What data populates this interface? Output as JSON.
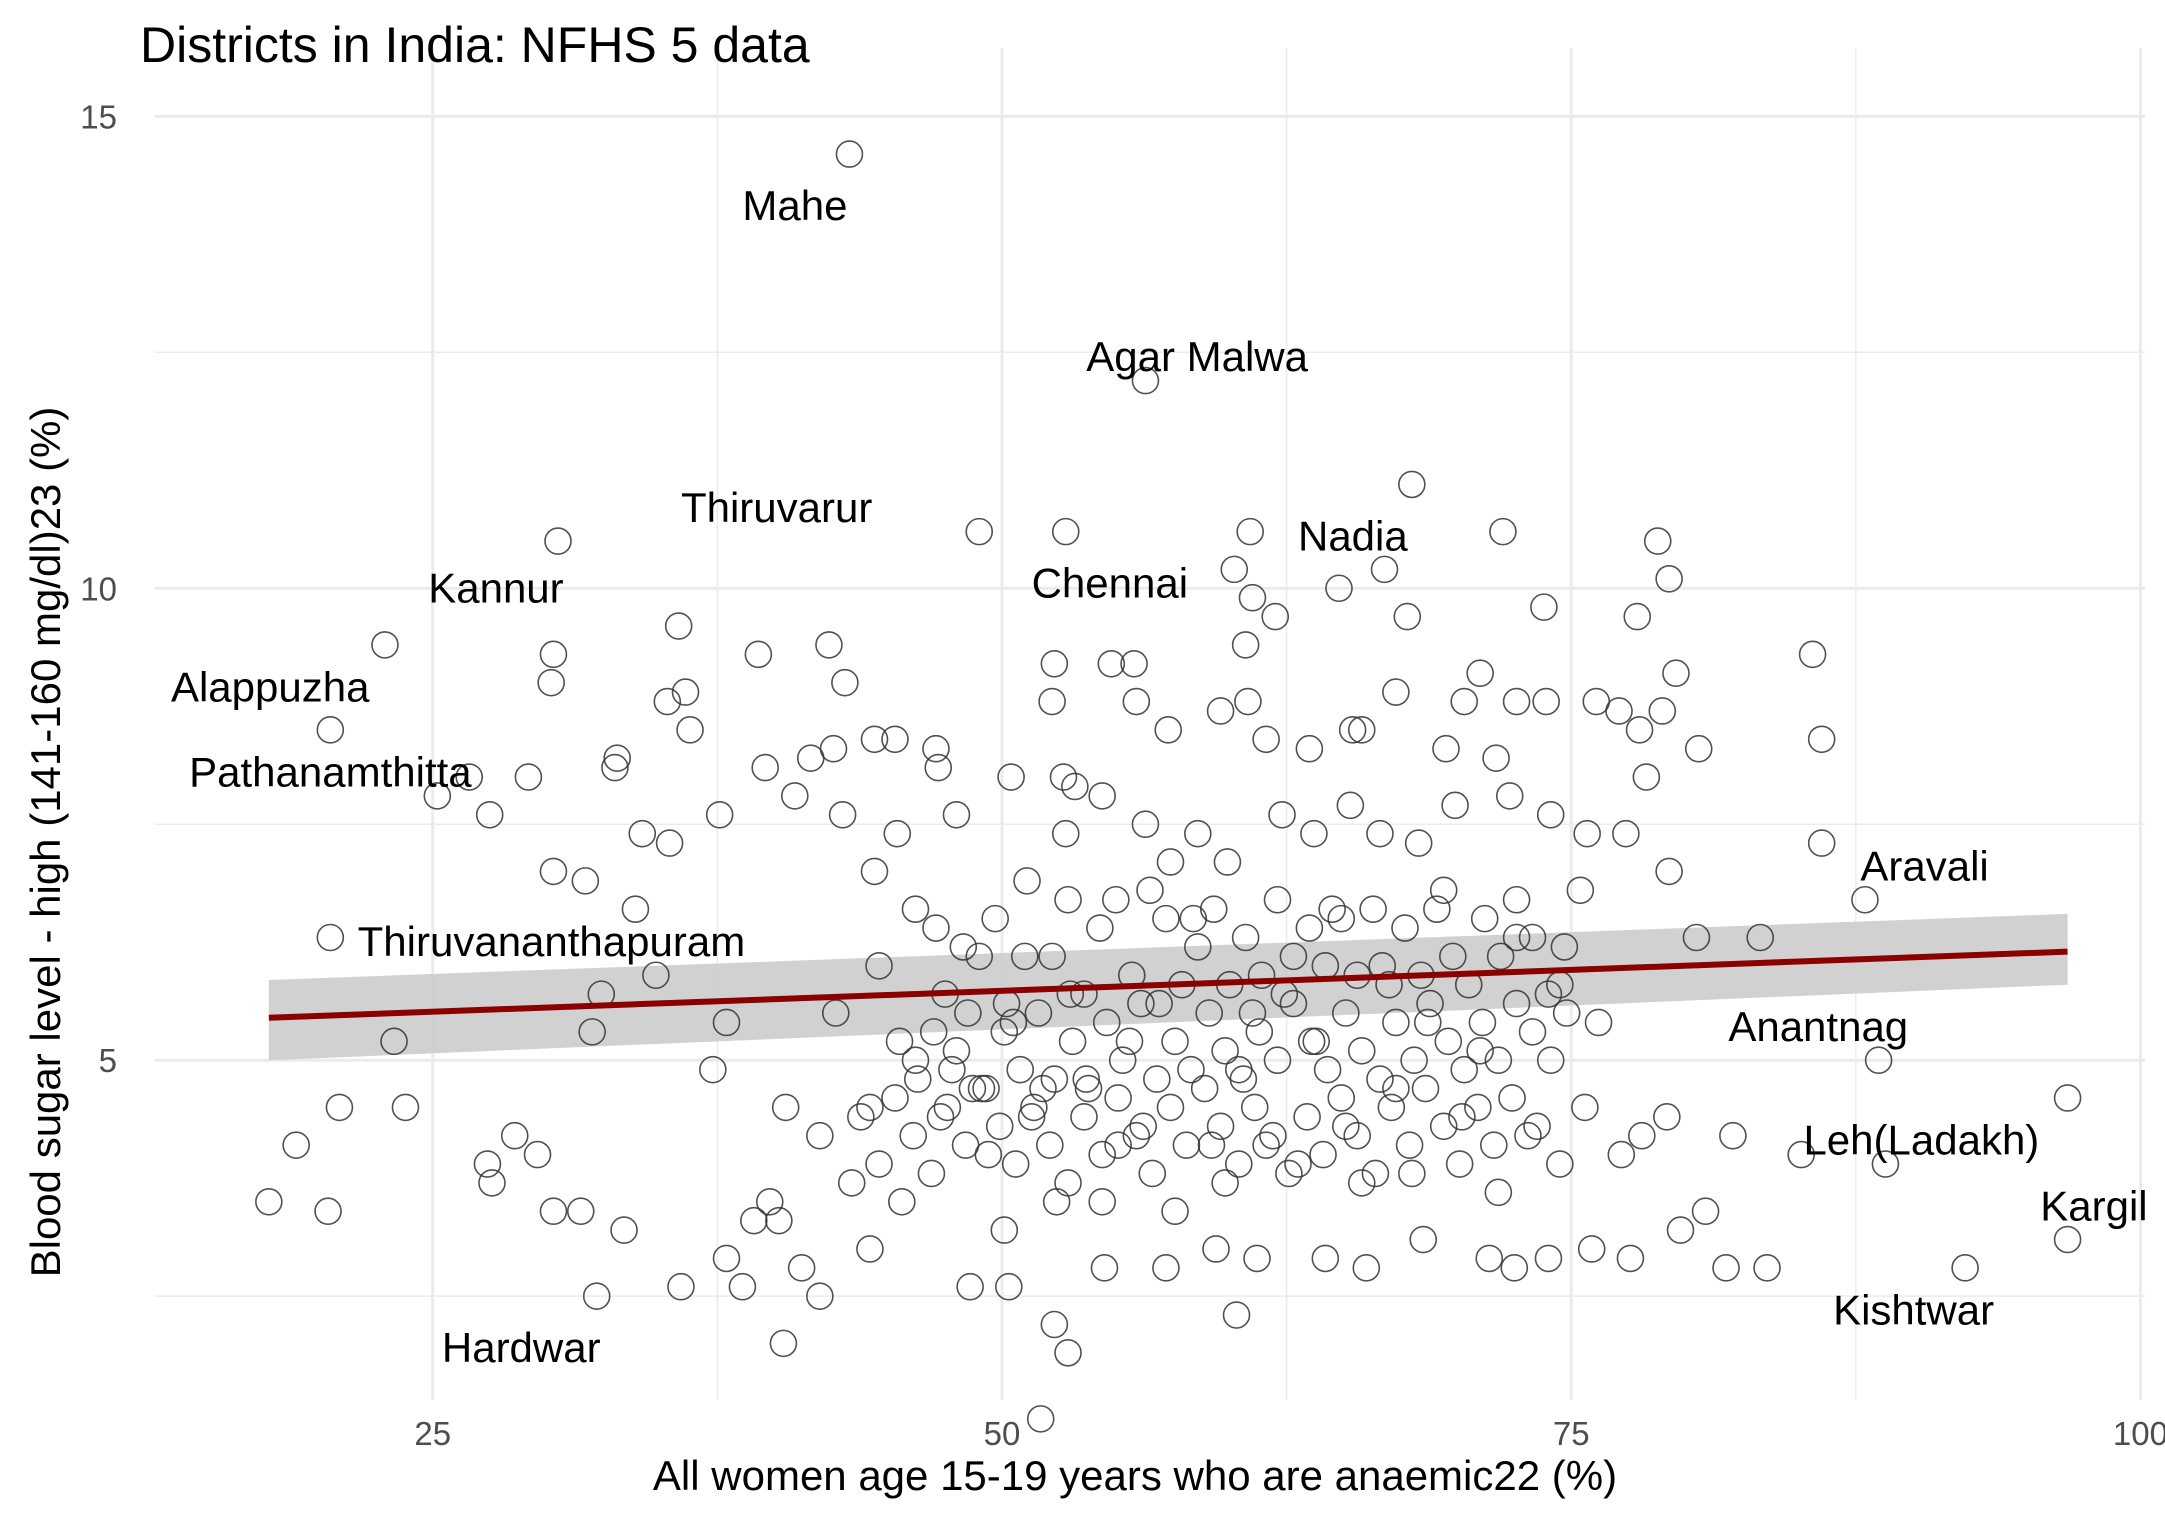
{
  "chart_data": {
    "type": "scatter",
    "title": "Districts in India: NFHS 5 data",
    "xlabel": "All women age 15-19 years who are anaemic22 (%)",
    "ylabel": "Blood sugar level - high (141-160 mg/dl)23 (%)",
    "xlim": [
      12.8,
      100.2
    ],
    "ylim": [
      1.4,
      15.3
    ],
    "x_ticks": [
      25,
      50,
      75,
      100
    ],
    "y_ticks": [
      5,
      10,
      15
    ],
    "grid": true,
    "legend": "none",
    "colors": {
      "points_stroke": "#333333",
      "trend_line": "#8b0000",
      "confidence_band": "#cccccc",
      "grid": "#ebebeb"
    },
    "trend_line": {
      "x": [
        17.8,
        96.8
      ],
      "y": [
        5.45,
        6.15
      ],
      "band_lower": [
        5.0,
        5.8
      ],
      "band_upper": [
        5.85,
        6.55
      ]
    },
    "labels": [
      {
        "text": "Mahe",
        "x": 38.6,
        "y": 14.05
      },
      {
        "text": "Agar Malwa",
        "x": 53.7,
        "y": 12.45
      },
      {
        "text": "Thiruvarur",
        "x": 35.9,
        "y": 10.85
      },
      {
        "text": "Nadia",
        "x": 63.0,
        "y": 10.55
      },
      {
        "text": "Chennai",
        "x": 51.3,
        "y": 10.05
      },
      {
        "text": "Kannur",
        "x": 24.8,
        "y": 10.0
      },
      {
        "text": "Alappuzha",
        "x": 13.5,
        "y": 8.95
      },
      {
        "text": "Pathanamthitta",
        "x": 14.3,
        "y": 8.05
      },
      {
        "text": "Thiruvananthapuram",
        "x": 21.7,
        "y": 6.25
      },
      {
        "text": "Aravali",
        "x": 87.7,
        "y": 7.05
      },
      {
        "text": "Anantnag",
        "x": 81.9,
        "y": 5.35
      },
      {
        "text": "Leh(Ladakh)",
        "x": 85.2,
        "y": 4.15
      },
      {
        "text": "Kargil",
        "x": 95.6,
        "y": 3.45
      },
      {
        "text": "Kishtwar",
        "x": 86.5,
        "y": 2.35
      },
      {
        "text": "Hardwar",
        "x": 25.4,
        "y": 1.95
      }
    ],
    "points": [
      [
        43.3,
        14.6
      ],
      [
        56.3,
        12.2
      ],
      [
        49.0,
        10.6
      ],
      [
        52.8,
        10.6
      ],
      [
        60.9,
        10.6
      ],
      [
        68.0,
        11.1
      ],
      [
        72.0,
        10.6
      ],
      [
        78.8,
        10.5
      ],
      [
        79.3,
        10.1
      ],
      [
        30.5,
        10.5
      ],
      [
        60.2,
        10.2
      ],
      [
        61.0,
        9.9
      ],
      [
        62.0,
        9.7
      ],
      [
        64.8,
        10.0
      ],
      [
        66.8,
        10.2
      ],
      [
        67.8,
        9.7
      ],
      [
        73.8,
        9.8
      ],
      [
        77.9,
        9.7
      ],
      [
        85.6,
        9.3
      ],
      [
        22.9,
        9.4
      ],
      [
        30.3,
        9.3
      ],
      [
        30.2,
        9.0
      ],
      [
        35.8,
        9.6
      ],
      [
        39.3,
        9.3
      ],
      [
        42.4,
        9.4
      ],
      [
        43.1,
        9.0
      ],
      [
        52.3,
        9.2
      ],
      [
        54.8,
        9.2
      ],
      [
        55.8,
        9.2
      ],
      [
        60.7,
        9.4
      ],
      [
        71.0,
        9.1
      ],
      [
        79.6,
        9.1
      ],
      [
        20.5,
        8.5
      ],
      [
        25.2,
        7.8
      ],
      [
        27.5,
        7.6
      ],
      [
        31.7,
        6.9
      ],
      [
        33.1,
        8.2
      ],
      [
        35.3,
        8.8
      ],
      [
        36.1,
        8.9
      ],
      [
        36.3,
        8.5
      ],
      [
        39.6,
        8.1
      ],
      [
        41.6,
        8.2
      ],
      [
        42.6,
        8.3
      ],
      [
        44.4,
        8.4
      ],
      [
        45.3,
        8.4
      ],
      [
        47.1,
        8.3
      ],
      [
        47.2,
        8.1
      ],
      [
        50.4,
        8.0
      ],
      [
        52.2,
        8.8
      ],
      [
        52.7,
        8.0
      ],
      [
        55.9,
        8.8
      ],
      [
        57.3,
        8.5
      ],
      [
        59.6,
        8.7
      ],
      [
        60.8,
        8.8
      ],
      [
        61.6,
        8.4
      ],
      [
        63.5,
        8.3
      ],
      [
        65.4,
        8.5
      ],
      [
        65.8,
        8.5
      ],
      [
        67.3,
        8.9
      ],
      [
        69.5,
        8.3
      ],
      [
        70.3,
        8.8
      ],
      [
        71.7,
        8.2
      ],
      [
        72.6,
        8.8
      ],
      [
        73.9,
        8.8
      ],
      [
        76.1,
        8.8
      ],
      [
        77.1,
        8.7
      ],
      [
        78.0,
        8.5
      ],
      [
        79.0,
        8.7
      ],
      [
        80.6,
        8.3
      ],
      [
        86.0,
        8.4
      ],
      [
        26.6,
        8.0
      ],
      [
        29.2,
        8.0
      ],
      [
        30.3,
        7.0
      ],
      [
        33.0,
        8.1
      ],
      [
        34.2,
        7.4
      ],
      [
        35.4,
        7.3
      ],
      [
        37.6,
        7.6
      ],
      [
        40.9,
        7.8
      ],
      [
        43.0,
        7.6
      ],
      [
        44.4,
        7.0
      ],
      [
        45.4,
        7.4
      ],
      [
        47.1,
        6.4
      ],
      [
        48.0,
        7.6
      ],
      [
        49.7,
        6.5
      ],
      [
        51.1,
        6.9
      ],
      [
        52.8,
        7.4
      ],
      [
        53.2,
        7.9
      ],
      [
        54.4,
        7.8
      ],
      [
        56.3,
        7.5
      ],
      [
        57.4,
        7.1
      ],
      [
        58.6,
        7.4
      ],
      [
        59.9,
        7.1
      ],
      [
        62.3,
        7.6
      ],
      [
        63.7,
        7.4
      ],
      [
        65.3,
        7.7
      ],
      [
        66.6,
        7.4
      ],
      [
        68.3,
        7.3
      ],
      [
        69.9,
        7.7
      ],
      [
        72.3,
        7.8
      ],
      [
        74.1,
        7.6
      ],
      [
        75.7,
        7.4
      ],
      [
        77.4,
        7.4
      ],
      [
        78.3,
        8.0
      ],
      [
        79.3,
        7.0
      ],
      [
        86.0,
        7.3
      ],
      [
        87.9,
        6.7
      ],
      [
        17.8,
        3.5
      ],
      [
        19.0,
        4.1
      ],
      [
        20.4,
        3.4
      ],
      [
        20.5,
        6.3
      ],
      [
        20.9,
        4.5
      ],
      [
        23.3,
        5.2
      ],
      [
        23.8,
        4.5
      ],
      [
        27.4,
        3.9
      ],
      [
        27.6,
        3.7
      ],
      [
        28.6,
        4.2
      ],
      [
        29.6,
        4.0
      ],
      [
        30.3,
        3.4
      ],
      [
        32.0,
        5.3
      ],
      [
        32.4,
        5.7
      ],
      [
        33.4,
        3.2
      ],
      [
        33.9,
        6.6
      ],
      [
        34.8,
        5.9
      ],
      [
        37.3,
        4.9
      ],
      [
        37.9,
        5.4
      ],
      [
        38.6,
        2.6
      ],
      [
        39.8,
        3.5
      ],
      [
        40.2,
        3.3
      ],
      [
        40.5,
        4.5
      ],
      [
        41.2,
        2.8
      ],
      [
        42.0,
        4.2
      ],
      [
        42.7,
        5.5
      ],
      [
        43.4,
        3.7
      ],
      [
        44.2,
        4.5
      ],
      [
        44.6,
        6.0
      ],
      [
        46.2,
        5.0
      ],
      [
        47.3,
        4.4
      ],
      [
        48.0,
        5.1
      ],
      [
        48.7,
        4.7
      ],
      [
        49.4,
        4.0
      ],
      [
        50.1,
        3.2
      ],
      [
        50.5,
        5.4
      ],
      [
        51.3,
        4.4
      ],
      [
        51.8,
        4.7
      ],
      [
        52.4,
        3.5
      ],
      [
        53.0,
        5.7
      ],
      [
        53.7,
        4.8
      ],
      [
        54.4,
        3.5
      ],
      [
        55.1,
        4.1
      ],
      [
        55.6,
        5.2
      ],
      [
        56.2,
        4.3
      ],
      [
        56.9,
        5.6
      ],
      [
        57.6,
        3.4
      ],
      [
        58.4,
        6.5
      ],
      [
        59.2,
        4.1
      ],
      [
        59.8,
        3.7
      ],
      [
        60.4,
        4.9
      ],
      [
        61.0,
        5.5
      ],
      [
        61.6,
        4.1
      ],
      [
        62.4,
        5.7
      ],
      [
        63.0,
        3.9
      ],
      [
        63.8,
        5.2
      ],
      [
        64.5,
        6.6
      ],
      [
        65.1,
        4.3
      ],
      [
        65.8,
        3.7
      ],
      [
        66.7,
        6.0
      ],
      [
        67.3,
        4.7
      ],
      [
        68.0,
        3.8
      ],
      [
        68.7,
        5.4
      ],
      [
        69.4,
        6.8
      ],
      [
        70.2,
        4.4
      ],
      [
        71.0,
        5.1
      ],
      [
        71.8,
        3.6
      ],
      [
        72.6,
        6.3
      ],
      [
        73.5,
        4.3
      ],
      [
        74.5,
        5.8
      ],
      [
        75.6,
        4.5
      ],
      [
        76.2,
        5.4
      ],
      [
        77.2,
        4.0
      ],
      [
        78.1,
        4.2
      ],
      [
        79.2,
        4.4
      ],
      [
        80.5,
        6.3
      ],
      [
        80.9,
        3.4
      ],
      [
        83.3,
        6.3
      ],
      [
        88.5,
        5.0
      ],
      [
        96.8,
        4.6
      ],
      [
        96.8,
        3.1
      ],
      [
        92.3,
        2.8
      ],
      [
        85.1,
        4.0
      ],
      [
        83.6,
        2.8
      ],
      [
        81.8,
        2.8
      ],
      [
        77.6,
        2.9
      ],
      [
        75.9,
        3.0
      ],
      [
        74.0,
        2.9
      ],
      [
        72.5,
        2.8
      ],
      [
        71.4,
        2.9
      ],
      [
        66.0,
        2.8
      ],
      [
        64.2,
        2.9
      ],
      [
        61.2,
        2.9
      ],
      [
        59.4,
        3.0
      ],
      [
        57.2,
        2.8
      ],
      [
        54.5,
        2.8
      ],
      [
        52.9,
        1.9
      ],
      [
        52.3,
        2.2
      ],
      [
        51.7,
        1.2
      ],
      [
        50.3,
        2.6
      ],
      [
        48.6,
        2.6
      ],
      [
        44.2,
        3.0
      ],
      [
        39.1,
        3.3
      ],
      [
        37.9,
        2.9
      ],
      [
        35.9,
        2.6
      ],
      [
        32.2,
        2.5
      ],
      [
        31.5,
        3.4
      ],
      [
        40.4,
        2.0
      ],
      [
        42.0,
        2.5
      ],
      [
        45.6,
        3.5
      ],
      [
        60.3,
        2.3
      ],
      [
        68.5,
        3.1
      ],
      [
        74.5,
        3.9
      ],
      [
        79.8,
        3.2
      ],
      [
        82.1,
        4.2
      ],
      [
        88.8,
        3.9
      ],
      [
        46.2,
        6.6
      ],
      [
        47.5,
        5.7
      ],
      [
        48.3,
        6.2
      ],
      [
        49.0,
        6.1
      ],
      [
        50.2,
        5.6
      ],
      [
        51.0,
        6.1
      ],
      [
        52.2,
        6.1
      ],
      [
        52.9,
        6.7
      ],
      [
        53.6,
        5.7
      ],
      [
        54.3,
        6.4
      ],
      [
        55.0,
        6.7
      ],
      [
        55.7,
        5.9
      ],
      [
        56.5,
        6.8
      ],
      [
        57.2,
        6.5
      ],
      [
        57.9,
        5.8
      ],
      [
        58.6,
        6.2
      ],
      [
        59.3,
        6.6
      ],
      [
        60.0,
        5.8
      ],
      [
        60.7,
        6.3
      ],
      [
        61.4,
        5.9
      ],
      [
        62.1,
        6.7
      ],
      [
        62.8,
        6.1
      ],
      [
        63.5,
        6.4
      ],
      [
        64.2,
        6.0
      ],
      [
        64.9,
        6.5
      ],
      [
        65.6,
        5.9
      ],
      [
        66.3,
        6.6
      ],
      [
        67.0,
        5.8
      ],
      [
        67.7,
        6.4
      ],
      [
        68.4,
        5.9
      ],
      [
        69.1,
        6.6
      ],
      [
        69.8,
        6.1
      ],
      [
        70.5,
        5.8
      ],
      [
        71.2,
        6.5
      ],
      [
        71.9,
        6.1
      ],
      [
        72.6,
        6.7
      ],
      [
        73.3,
        6.3
      ],
      [
        74.0,
        5.7
      ],
      [
        74.7,
        6.2
      ],
      [
        75.4,
        6.8
      ],
      [
        45.5,
        5.2
      ],
      [
        46.3,
        4.8
      ],
      [
        47.0,
        5.3
      ],
      [
        47.8,
        4.9
      ],
      [
        48.5,
        5.5
      ],
      [
        49.3,
        4.7
      ],
      [
        50.1,
        5.3
      ],
      [
        50.8,
        4.9
      ],
      [
        51.6,
        5.5
      ],
      [
        52.3,
        4.8
      ],
      [
        53.1,
        5.2
      ],
      [
        53.8,
        4.7
      ],
      [
        54.6,
        5.4
      ],
      [
        55.3,
        5.0
      ],
      [
        56.1,
        5.6
      ],
      [
        56.8,
        4.8
      ],
      [
        57.6,
        5.2
      ],
      [
        58.3,
        4.9
      ],
      [
        59.1,
        5.5
      ],
      [
        59.8,
        5.1
      ],
      [
        60.6,
        4.8
      ],
      [
        61.3,
        5.3
      ],
      [
        62.1,
        5.0
      ],
      [
        62.8,
        5.6
      ],
      [
        63.6,
        5.2
      ],
      [
        64.3,
        4.9
      ],
      [
        65.1,
        5.5
      ],
      [
        65.8,
        5.1
      ],
      [
        66.6,
        4.8
      ],
      [
        67.3,
        5.4
      ],
      [
        68.1,
        5.0
      ],
      [
        68.8,
        5.6
      ],
      [
        69.6,
        5.2
      ],
      [
        70.3,
        4.9
      ],
      [
        71.1,
        5.4
      ],
      [
        71.8,
        5.0
      ],
      [
        72.6,
        5.6
      ],
      [
        73.3,
        5.3
      ],
      [
        74.1,
        5.0
      ],
      [
        74.8,
        5.5
      ],
      [
        43.8,
        4.4
      ],
      [
        44.6,
        3.9
      ],
      [
        45.3,
        4.6
      ],
      [
        46.1,
        4.2
      ],
      [
        46.9,
        3.8
      ],
      [
        47.6,
        4.5
      ],
      [
        48.4,
        4.1
      ],
      [
        49.1,
        4.7
      ],
      [
        49.9,
        4.3
      ],
      [
        50.6,
        3.9
      ],
      [
        51.4,
        4.5
      ],
      [
        52.1,
        4.1
      ],
      [
        52.9,
        3.7
      ],
      [
        53.6,
        4.4
      ],
      [
        54.4,
        4.0
      ],
      [
        55.1,
        4.6
      ],
      [
        55.9,
        4.2
      ],
      [
        56.6,
        3.8
      ],
      [
        57.4,
        4.5
      ],
      [
        58.1,
        4.1
      ],
      [
        58.9,
        4.7
      ],
      [
        59.6,
        4.3
      ],
      [
        60.4,
        3.9
      ],
      [
        61.1,
        4.5
      ],
      [
        61.9,
        4.2
      ],
      [
        62.6,
        3.8
      ],
      [
        63.4,
        4.4
      ],
      [
        64.1,
        4.0
      ],
      [
        64.9,
        4.6
      ],
      [
        65.6,
        4.2
      ],
      [
        66.4,
        3.8
      ],
      [
        67.1,
        4.5
      ],
      [
        67.9,
        4.1
      ],
      [
        68.6,
        4.7
      ],
      [
        69.4,
        4.3
      ],
      [
        70.1,
        3.9
      ],
      [
        70.9,
        4.5
      ],
      [
        71.6,
        4.1
      ],
      [
        72.4,
        4.6
      ],
      [
        73.1,
        4.2
      ]
    ]
  }
}
